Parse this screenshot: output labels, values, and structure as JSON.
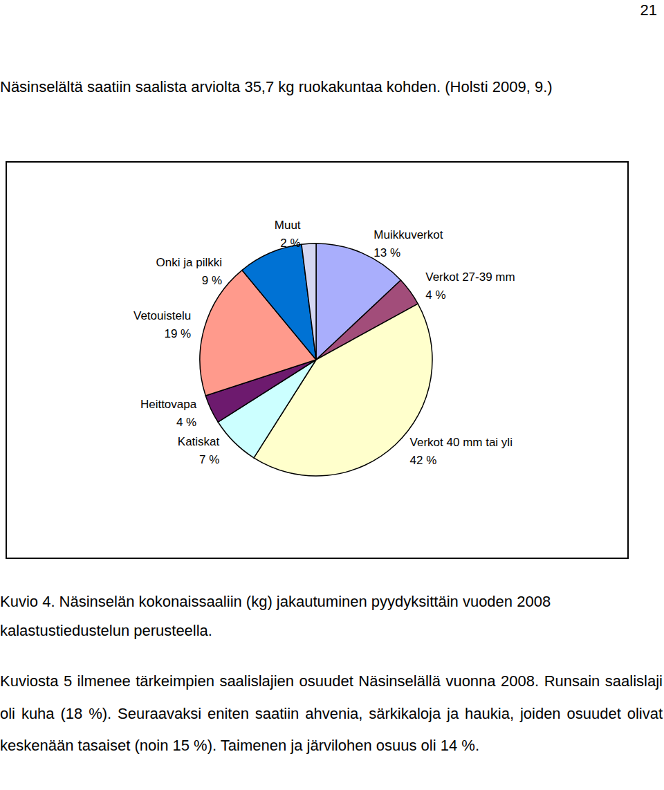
{
  "page_number": "21",
  "paragraphs_before": [
    "Näsinselältä saatiin saalista arviolta 35,7 kg ruokakuntaa kohden. (Holsti 2009, 9.)"
  ],
  "chart_data": {
    "type": "pie",
    "categories": [
      "Muikkuverkot",
      "Verkot 27-39 mm",
      "Verkot 40 mm tai yli",
      "Katiskat",
      "Heittovapa",
      "Vetouistelu",
      "Onki ja pilkki",
      "Muut"
    ],
    "values": [
      13,
      4,
      42,
      7,
      4,
      19,
      9,
      2
    ],
    "value_labels": [
      "13 %",
      "4 %",
      "42 %",
      "7 %",
      "4 %",
      "19 %",
      "9 %",
      "2 %"
    ],
    "colors": [
      "#a9aefc",
      "#a24d7a",
      "#ffffcc",
      "#ccffff",
      "#6d1a6e",
      "#ff9a8c",
      "#0072d4",
      "#d4d6f2"
    ],
    "data_labels": true
  },
  "caption": "Kuvio 4. Näsinselän kokonaissaaliin (kg) jakautuminen pyydyksittäin vuoden 2008 kalastustiedustelun perusteella.",
  "paragraphs_after": [
    "Kuviosta 5 ilmenee tärkeimpien saalislajien osuudet Näsinselällä vuonna 2008. Runsain saalislaji oli kuha (18 %). Seuraavaksi eniten saatiin ahvenia, särkikaloja ja haukia, joiden osuudet olivat keskenään tasaiset (noin 15 %). Taimenen ja järvilohen osuus oli 14 %."
  ]
}
